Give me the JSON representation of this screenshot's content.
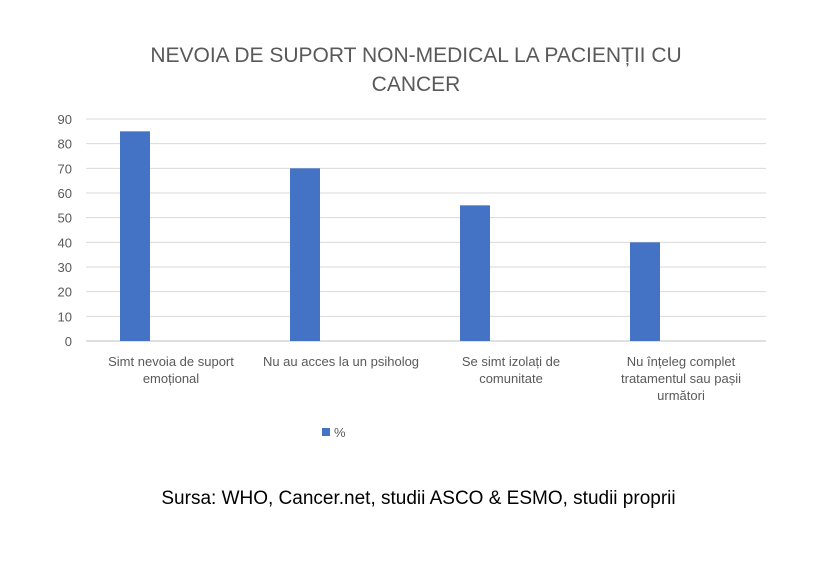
{
  "chart_data": {
    "type": "bar",
    "title_lines": [
      "NEVOIA DE SUPORT NON-MEDICAL LA PACIENȚII CU",
      "CANCER"
    ],
    "categories": [
      [
        "Simt nevoia de suport",
        "emoțional"
      ],
      [
        "Nu au acces la un psiholog"
      ],
      [
        "Se simt izolați de",
        "comunitate"
      ],
      [
        "Nu înțeleg complet",
        "tratamentul sau pașii",
        "următori"
      ]
    ],
    "series": [
      {
        "name": "%",
        "values": [
          85,
          70,
          55,
          40
        ],
        "color": "#4472C4"
      }
    ],
    "yticks": [
      0,
      10,
      20,
      30,
      40,
      50,
      60,
      70,
      80,
      90
    ],
    "ylim": [
      0,
      90
    ],
    "grid": true,
    "legend_position": "bottom"
  },
  "source_note": "Sursa: WHO, Cancer.net, studii ASCO & ESMO, studii proprii"
}
